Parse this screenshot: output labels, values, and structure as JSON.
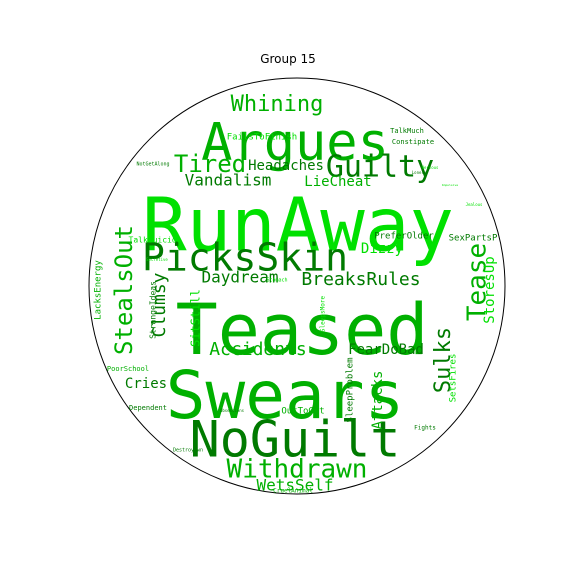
{
  "title": "Group 15",
  "colors": {
    "dark": "#007a00",
    "mid": "#00b000",
    "bright": "#00e000",
    "circle": "#000000"
  },
  "words": [
    {
      "text": "RunAway",
      "tone": "bright"
    },
    {
      "text": "Teased",
      "tone": "mid"
    },
    {
      "text": "Swears",
      "tone": "mid"
    },
    {
      "text": "Argues",
      "tone": "mid"
    },
    {
      "text": "NoGuilt",
      "tone": "dark"
    },
    {
      "text": "PicksSkin",
      "tone": "dark"
    },
    {
      "text": "Withdrawn",
      "tone": "mid"
    },
    {
      "text": "Guilty",
      "tone": "dark"
    },
    {
      "text": "Whining",
      "tone": "mid"
    },
    {
      "text": "Tired",
      "tone": "mid"
    },
    {
      "text": "Headaches",
      "tone": "dark"
    },
    {
      "text": "Vandalism",
      "tone": "dark"
    },
    {
      "text": "LieCheat",
      "tone": "mid"
    },
    {
      "text": "StealsOut",
      "tone": "mid"
    },
    {
      "text": "Clumsy",
      "tone": "dark"
    },
    {
      "text": "Daydream",
      "tone": "dark"
    },
    {
      "text": "BreaksRules",
      "tone": "dark"
    },
    {
      "text": "Dizzy",
      "tone": "bright"
    },
    {
      "text": "Tease",
      "tone": "mid"
    },
    {
      "text": "StoresUp",
      "tone": "bright"
    },
    {
      "text": "Sulks",
      "tone": "dark"
    },
    {
      "text": "Accidents",
      "tone": "mid"
    },
    {
      "text": "FearDoBad",
      "tone": "dark"
    },
    {
      "text": "Attacks",
      "tone": "mid"
    },
    {
      "text": "WetsSelf",
      "tone": "mid"
    },
    {
      "text": "Cries",
      "tone": "dark"
    },
    {
      "text": "SitStill",
      "tone": "bright"
    },
    {
      "text": "SleepProblem",
      "tone": "dark"
    },
    {
      "text": "PreferOlder",
      "tone": "dark"
    },
    {
      "text": "SexPartsP",
      "tone": "dark"
    },
    {
      "text": "LacksEnergy",
      "tone": "mid"
    },
    {
      "text": "StrangeIdeas",
      "tone": "dark"
    },
    {
      "text": "SleepsMore",
      "tone": "bright"
    },
    {
      "text": "OutToGet",
      "tone": "mid"
    },
    {
      "text": "SetsFires",
      "tone": "bright"
    },
    {
      "text": "FailsToFinish",
      "tone": "bright"
    },
    {
      "text": "TalkMuch",
      "tone": "dark"
    },
    {
      "text": "Constipate",
      "tone": "dark"
    },
    {
      "text": "NotGetAlong",
      "tone": "dark"
    },
    {
      "text": "TalkSuicide",
      "tone": "bright"
    },
    {
      "text": "PoorSchool",
      "tone": "mid"
    },
    {
      "text": "Dependent",
      "tone": "dark"
    },
    {
      "text": "Stomach",
      "tone": "bright"
    },
    {
      "text": "Fights",
      "tone": "dark"
    },
    {
      "text": "Destroyown",
      "tone": "dark"
    },
    {
      "text": "CruelAnimal",
      "tone": "mid"
    },
    {
      "text": "Obsessions",
      "tone": "dark"
    },
    {
      "text": "Lonely",
      "tone": "dark"
    },
    {
      "text": "Jealous",
      "tone": "bright"
    },
    {
      "text": "Nervous",
      "tone": "bright"
    },
    {
      "text": "Impulsive",
      "tone": "bright"
    },
    {
      "text": "Secretive",
      "tone": "bright"
    }
  ]
}
